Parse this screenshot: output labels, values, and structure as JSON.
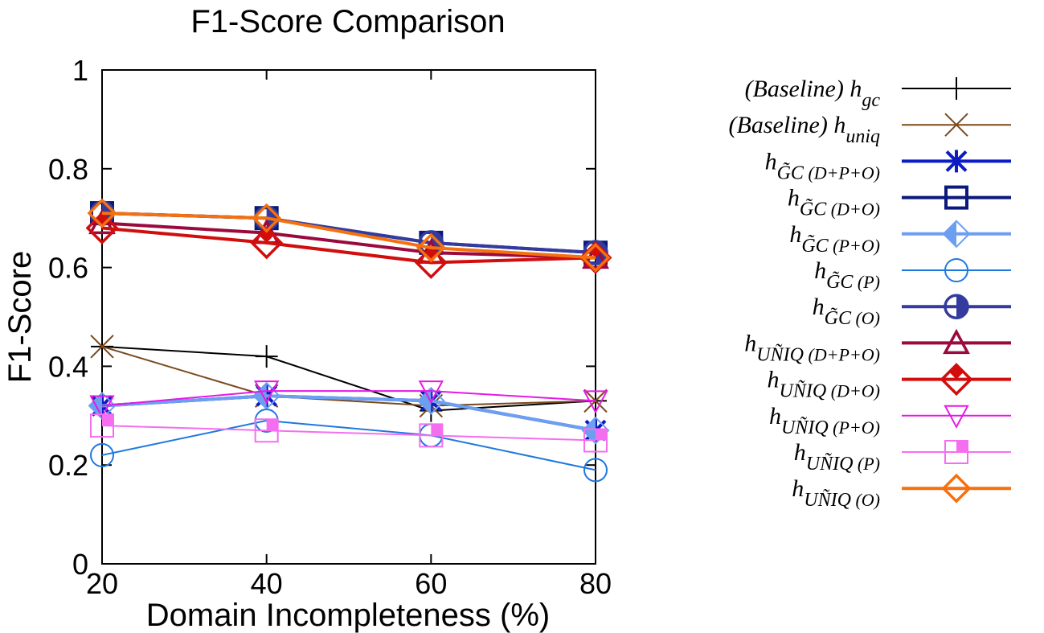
{
  "chart_data": {
    "type": "line",
    "title": "F1-Score Comparison",
    "xlabel": "Domain Incompleteness (%)",
    "ylabel": "F1-Score",
    "x": [
      20,
      40,
      60,
      80
    ],
    "xlim": [
      20,
      80
    ],
    "ylim": [
      0,
      1
    ],
    "xticks": [
      "20",
      "40",
      "60",
      "80"
    ],
    "yticks": [
      "0",
      "0.2",
      "0.4",
      "0.6",
      "0.8",
      "1"
    ],
    "xtick_values": [
      20,
      40,
      60,
      80
    ],
    "ytick_values": [
      0,
      0.2,
      0.4,
      0.6,
      0.8,
      1
    ],
    "grid": false,
    "legend_position": "outside-right",
    "series": [
      {
        "name": "(Baseline) h_gc",
        "label_main": "(Baseline) h",
        "label_sub": "gc",
        "label_tilde": "",
        "label_paren": "",
        "color": "#000000",
        "marker": "plus",
        "weight": "thin",
        "values": [
          0.44,
          0.42,
          0.31,
          0.33
        ]
      },
      {
        "name": "(Baseline) h_uniq",
        "label_main": "(Baseline) h",
        "label_sub": "uniq",
        "label_tilde": "",
        "label_paren": "",
        "color": "#7a4a1e",
        "marker": "cross",
        "weight": "thin",
        "values": [
          0.44,
          0.34,
          0.32,
          0.33
        ]
      },
      {
        "name": "h_GC~(D+P+O)",
        "label_main": "h",
        "label_sub": "GC",
        "label_tilde": "G",
        "label_paren": "(D+P+O)",
        "color": "#0b1cc4",
        "marker": "star",
        "weight": "thick",
        "values": [
          0.32,
          0.34,
          0.33,
          0.27
        ]
      },
      {
        "name": "h_GC~(D+O)",
        "label_main": "h",
        "label_sub": "GC",
        "label_tilde": "G",
        "label_paren": "(D+O)",
        "color": "#0b1a7a",
        "marker": "square",
        "weight": "thick",
        "values": [
          0.71,
          0.7,
          0.65,
          0.63
        ]
      },
      {
        "name": "h_GC~(P+O)",
        "label_main": "h",
        "label_sub": "GC",
        "label_tilde": "G",
        "label_paren": "(P+O)",
        "color": "#6d9ff0",
        "marker": "diamond-half",
        "weight": "thick",
        "values": [
          0.32,
          0.34,
          0.33,
          0.27
        ]
      },
      {
        "name": "h_GC~(P)",
        "label_main": "h",
        "label_sub": "GC",
        "label_tilde": "G",
        "label_paren": "(P)",
        "color": "#1f78e0",
        "marker": "circle",
        "weight": "thin",
        "values": [
          0.22,
          0.29,
          0.26,
          0.19
        ]
      },
      {
        "name": "h_GC~(O)",
        "label_main": "h",
        "label_sub": "GC",
        "label_tilde": "G",
        "label_paren": "(O)",
        "color": "#333c9e",
        "marker": "circle-half",
        "weight": "thick",
        "values": [
          0.71,
          0.7,
          0.65,
          0.63
        ]
      },
      {
        "name": "h_UNIQ~(D+P+O)",
        "label_main": "h",
        "label_sub": "UNIQ",
        "label_tilde": "N",
        "label_paren": "(D+P+O)",
        "color": "#9a0a3c",
        "marker": "triangle",
        "weight": "thick",
        "values": [
          0.69,
          0.67,
          0.63,
          0.62
        ]
      },
      {
        "name": "h_UNIQ~(D+O)",
        "label_main": "h",
        "label_sub": "UNIQ",
        "label_tilde": "N",
        "label_paren": "(D+O)",
        "color": "#d10d0d",
        "marker": "diamond-topfill",
        "weight": "thick",
        "values": [
          0.68,
          0.65,
          0.61,
          0.62
        ]
      },
      {
        "name": "h_UNIQ~(P+O)",
        "label_main": "h",
        "label_sub": "UNIQ",
        "label_tilde": "N",
        "label_paren": "(P+O)",
        "color": "#e619e6",
        "marker": "triangle-down",
        "weight": "thin",
        "values": [
          0.32,
          0.35,
          0.35,
          0.33
        ]
      },
      {
        "name": "h_UNIQ~(P)",
        "label_main": "h",
        "label_sub": "UNIQ",
        "label_tilde": "N",
        "label_paren": "(P)",
        "color": "#f56ef0",
        "marker": "square-quarter",
        "weight": "thin",
        "values": [
          0.28,
          0.27,
          0.26,
          0.25
        ]
      },
      {
        "name": "h_UNIQ~(O)",
        "label_main": "h",
        "label_sub": "UNIQ",
        "label_tilde": "N",
        "label_paren": "(O)",
        "color": "#f5700f",
        "marker": "diamond",
        "weight": "thick",
        "values": [
          0.71,
          0.7,
          0.64,
          0.62
        ]
      }
    ]
  }
}
